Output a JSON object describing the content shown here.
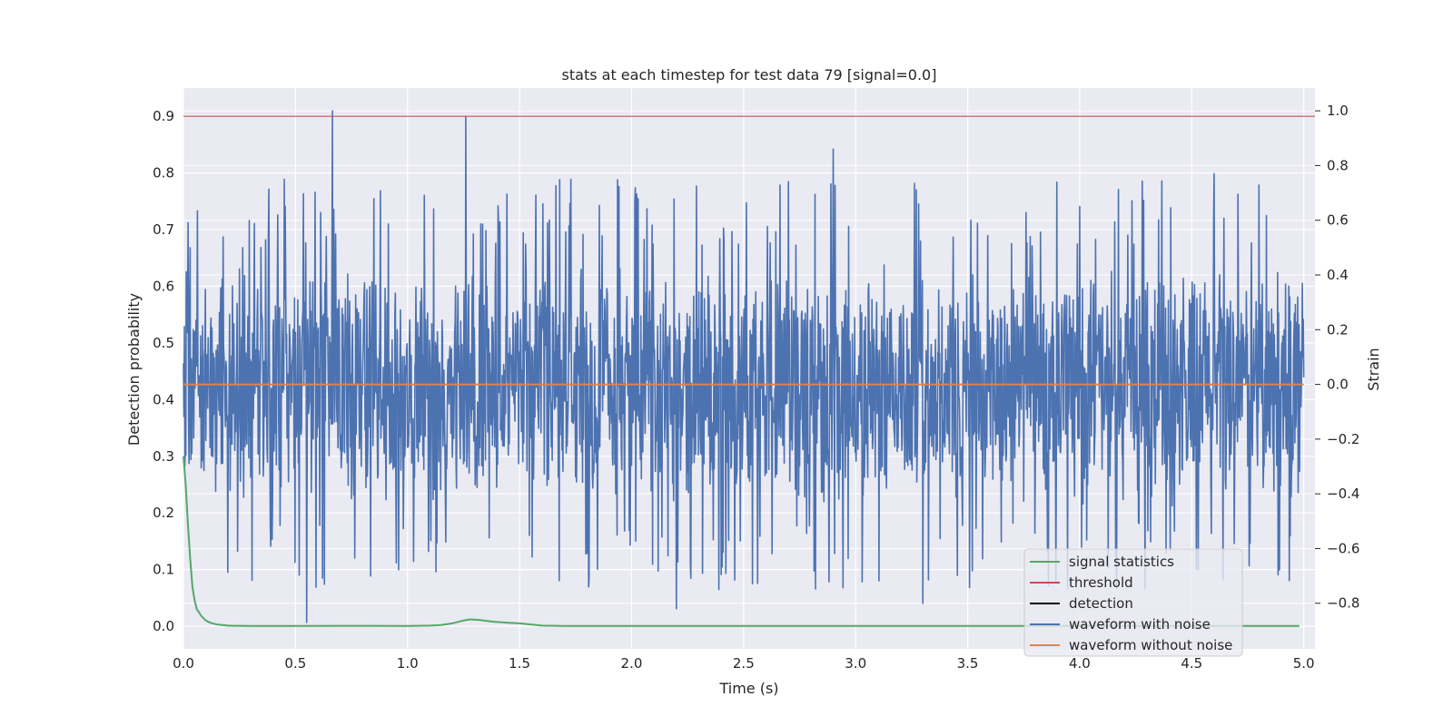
{
  "chart_data": {
    "type": "line",
    "title": "stats at each timestep for test data 79 [signal=0.0]",
    "xlabel": "Time (s)",
    "ylabel": "Detection probability",
    "y2label": "Strain",
    "xlim": [
      0.0,
      5.05
    ],
    "ylim": [
      -0.04,
      0.95
    ],
    "y2lim": [
      -0.9667,
      1.0834
    ],
    "xticks": [
      "0.0",
      "0.5",
      "1.0",
      "1.5",
      "2.0",
      "2.5",
      "3.0",
      "3.5",
      "4.0",
      "4.5",
      "5.0"
    ],
    "yticks": [
      "0.0",
      "0.1",
      "0.2",
      "0.3",
      "0.4",
      "0.5",
      "0.6",
      "0.7",
      "0.8",
      "0.9"
    ],
    "y2ticks": [
      "−0.8",
      "−0.6",
      "−0.4",
      "−0.2",
      "0.0",
      "0.2",
      "0.4",
      "0.6",
      "0.8",
      "1.0"
    ],
    "grid": true,
    "legend_position": "lower-right",
    "colors": {
      "signal_statistics": "#55a868",
      "threshold": "#c44e52",
      "detection": "#000000",
      "waveform_with_noise": "#4c72b0",
      "waveform_without_noise": "#dd8452",
      "plot_background": "#eaeaf2",
      "grid": "#ffffff"
    },
    "series": [
      {
        "name": "signal statistics",
        "axis": "left",
        "x": [
          0.0,
          0.01,
          0.02,
          0.03,
          0.04,
          0.05,
          0.06,
          0.08,
          0.1,
          0.12,
          0.15,
          0.2,
          0.3,
          0.5,
          0.8,
          1.0,
          1.1,
          1.15,
          1.2,
          1.25,
          1.28,
          1.32,
          1.38,
          1.45,
          1.5,
          1.55,
          1.6,
          1.7,
          2.0,
          3.0,
          4.0,
          4.98
        ],
        "y": [
          0.3,
          0.25,
          0.18,
          0.12,
          0.07,
          0.045,
          0.03,
          0.018,
          0.01,
          0.006,
          0.003,
          0.001,
          0.0005,
          0.0005,
          0.0007,
          0.0005,
          0.001,
          0.002,
          0.005,
          0.01,
          0.012,
          0.011,
          0.008,
          0.006,
          0.005,
          0.003,
          0.001,
          0.0005,
          0.0005,
          0.0005,
          0.0005,
          0.0005
        ]
      },
      {
        "name": "threshold",
        "axis": "left",
        "x": [
          0.0,
          5.05
        ],
        "y": [
          0.9,
          0.9
        ]
      },
      {
        "name": "detection",
        "axis": "left",
        "x": [],
        "y": []
      },
      {
        "name": "waveform with noise",
        "axis": "right",
        "t_range": [
          0.0,
          5.0
        ],
        "typical_range": [
          -0.45,
          0.45
        ],
        "peaks": [
          {
            "x": 0.03,
            "y": 0.5
          },
          {
            "x": 0.45,
            "y": 0.75
          },
          {
            "x": 0.55,
            "y": -0.87
          },
          {
            "x": 0.665,
            "y": 1.0
          },
          {
            "x": 1.26,
            "y": 0.98
          },
          {
            "x": 2.2,
            "y": -0.82
          },
          {
            "x": 2.9,
            "y": 0.86
          },
          {
            "x": 3.3,
            "y": -0.8
          },
          {
            "x": 4.6,
            "y": 0.77
          }
        ]
      },
      {
        "name": "waveform without noise",
        "axis": "right",
        "x": [
          0.0,
          5.0
        ],
        "y": [
          0.0,
          0.0
        ]
      }
    ]
  }
}
